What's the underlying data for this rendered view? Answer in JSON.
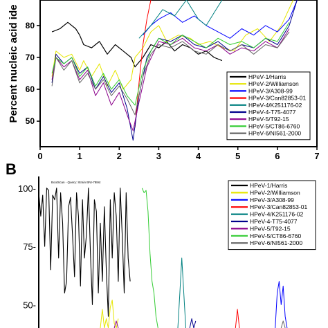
{
  "chart_data": [
    {
      "type": "line",
      "panel_label": "",
      "ylabel": "Percent nucleic acid ide",
      "xlabel": "",
      "xlim": [
        0,
        7
      ],
      "ylim": [
        42,
        88
      ],
      "x_ticks": [
        "0",
        "1",
        "2",
        "3",
        "4",
        "5",
        "6",
        "7"
      ],
      "y_ticks": [
        "50",
        "60",
        "70",
        "80"
      ],
      "legend_position": "bottom-right",
      "series": [
        {
          "name": "HPeV-1/Harris",
          "color": "#000000",
          "width": 1.2,
          "x": [
            0.3,
            0.5,
            0.7,
            0.9,
            1.0,
            1.1,
            1.3,
            1.5,
            1.7,
            1.9,
            2.1,
            2.3,
            2.4,
            2.6,
            2.8,
            3.0,
            3.2,
            3.4,
            3.6,
            3.8,
            4.0,
            4.2,
            4.4,
            4.6
          ],
          "y": [
            78,
            79,
            81,
            79,
            77,
            74,
            73,
            75,
            71,
            74,
            72,
            70,
            67,
            70,
            74,
            73,
            75,
            72,
            74,
            73,
            71,
            72,
            70,
            69
          ]
        },
        {
          "name": "HPeV-2/Williamson",
          "color": "#e6e600",
          "width": 1,
          "x": [
            0.3,
            0.4,
            0.6,
            0.8,
            1.0,
            1.1,
            1.3,
            1.5,
            1.7,
            1.9,
            2.1,
            2.3,
            2.4,
            2.6,
            2.8,
            3.0,
            3.2,
            3.5,
            3.8,
            4.0,
            4.3,
            4.6,
            4.9,
            5.2,
            5.5,
            5.8,
            6.1,
            6.4
          ],
          "y": [
            64,
            72,
            70,
            71,
            66,
            69,
            64,
            68,
            61,
            66,
            60,
            63,
            70,
            73,
            78,
            80,
            75,
            77,
            76,
            74,
            75,
            73,
            72,
            77,
            79,
            75,
            80,
            88
          ]
        },
        {
          "name": "HPeV-3/A308-99",
          "color": "#0000ff",
          "width": 1,
          "x": [
            2.6,
            2.8,
            3.0,
            3.3,
            3.6,
            3.9,
            4.2,
            4.5,
            4.8,
            5.1,
            5.4,
            5.7,
            6.0,
            6.3,
            6.5
          ],
          "y": [
            77,
            80,
            82,
            84,
            81,
            83,
            80,
            78,
            76,
            79,
            77,
            80,
            78,
            82,
            88
          ]
        },
        {
          "name": "HPeV-3/Can82853-01",
          "color": "#ff0000",
          "width": 1,
          "x": [
            2.4,
            2.5,
            2.6,
            2.7,
            2.8
          ],
          "y": [
            48,
            62,
            74,
            82,
            88
          ]
        },
        {
          "name": "HPeV-4/K251176-02",
          "color": "#008080",
          "width": 1,
          "x": [
            2.5,
            2.8,
            3.1,
            3.4,
            3.7,
            4.0,
            4.2,
            4.4,
            4.6
          ],
          "y": [
            76,
            80,
            85,
            83,
            88,
            82,
            80,
            84,
            88
          ]
        },
        {
          "name": "HPeV-4-T75-4077",
          "color": "#00008b",
          "width": 1,
          "x": [
            0.3,
            0.4,
            0.6,
            0.8,
            1.0,
            1.2,
            1.4,
            1.6,
            1.8,
            2.0,
            2.2,
            2.35,
            2.5,
            2.7,
            3.0,
            3.3,
            3.6,
            3.9,
            4.2,
            4.5,
            4.8,
            5.1,
            5.4,
            5.7,
            6.0,
            6.3,
            6.5
          ],
          "y": [
            62,
            71,
            68,
            70,
            65,
            67,
            60,
            64,
            59,
            62,
            54,
            44,
            58,
            70,
            76,
            75,
            77,
            74,
            73,
            75,
            72,
            74,
            73,
            76,
            74,
            80,
            88
          ]
        },
        {
          "name": "HPeV-5/T92-15",
          "color": "#8b008b",
          "width": 1,
          "x": [
            0.3,
            0.4,
            0.6,
            0.8,
            1.0,
            1.2,
            1.4,
            1.6,
            1.8,
            2.0,
            2.2,
            2.35,
            2.5,
            2.7,
            3.0,
            3.3,
            3.6,
            3.9,
            4.2,
            4.5,
            4.8,
            5.1,
            5.4,
            5.7,
            6.0,
            6.3
          ],
          "y": [
            63,
            70,
            67,
            69,
            63,
            66,
            58,
            62,
            55,
            59,
            52,
            47,
            56,
            67,
            75,
            74,
            76,
            73,
            72,
            74,
            71,
            73,
            72,
            75,
            73,
            79
          ]
        },
        {
          "name": "HPeV-5/CT86-6760",
          "color": "#33cc33",
          "width": 1,
          "x": [
            0.3,
            0.4,
            0.6,
            0.8,
            1.0,
            1.2,
            1.4,
            1.6,
            1.8,
            2.0,
            2.2,
            2.4,
            2.6,
            2.8,
            3.0,
            3.3,
            3.6,
            3.9,
            4.2,
            4.5,
            4.8,
            5.1,
            5.4,
            5.7,
            6.0,
            6.3
          ],
          "y": [
            65,
            70,
            68,
            70,
            64,
            67,
            61,
            65,
            60,
            63,
            58,
            55,
            66,
            72,
            76,
            74,
            77,
            75,
            73,
            76,
            74,
            75,
            73,
            76,
            75,
            81
          ]
        },
        {
          "name": "HPeV-6/NI561-2000",
          "color": "#666666",
          "width": 1,
          "x": [
            0.3,
            0.4,
            0.6,
            0.8,
            1.0,
            1.2,
            1.4,
            1.6,
            1.8,
            2.0,
            2.2,
            2.4,
            2.6,
            2.8,
            3.0,
            3.3,
            3.6,
            3.9,
            4.2,
            4.5,
            4.8,
            5.1,
            5.4,
            5.7,
            6.0,
            6.3
          ],
          "y": [
            61,
            70,
            66,
            69,
            62,
            65,
            60,
            63,
            58,
            61,
            57,
            52,
            64,
            71,
            74,
            73,
            75,
            72,
            71,
            74,
            72,
            74,
            71,
            74,
            73,
            78
          ]
        }
      ]
    },
    {
      "type": "line",
      "panel_label": "B",
      "ylabel": "",
      "xlabel": "",
      "ylim": [
        40,
        105
      ],
      "xlim": [
        0,
        7
      ],
      "y_ticks": [
        "100-",
        "75-",
        "50-"
      ],
      "inner_title": "BootScan - Query: Strain BNI-788st",
      "legend_position": "top-right",
      "series": [
        {
          "name": "HPeV-1/Harris",
          "color": "#000000",
          "width": 1.1,
          "x": [
            0.0,
            0.05,
            0.1,
            0.15,
            0.2,
            0.25,
            0.3,
            0.35,
            0.4,
            0.45,
            0.5,
            0.55,
            0.6,
            0.65,
            0.7,
            0.75,
            0.8,
            0.85,
            0.9,
            0.95,
            1.0,
            1.05,
            1.1,
            1.15,
            1.2,
            1.25,
            1.3,
            1.35,
            1.4,
            1.45,
            1.5,
            1.55,
            1.6,
            1.65,
            1.7,
            1.75,
            1.8,
            1.85,
            1.9,
            1.95,
            2.0,
            2.05,
            2.1,
            2.15,
            2.2,
            2.25,
            2.3
          ],
          "y": [
            98,
            88,
            97,
            75,
            100,
            99,
            65,
            97,
            95,
            100,
            70,
            98,
            85,
            55,
            60,
            92,
            96,
            80,
            62,
            98,
            88,
            58,
            95,
            70,
            80,
            100,
            72,
            50,
            95,
            90,
            55,
            85,
            60,
            92,
            65,
            45,
            95,
            70,
            98,
            88,
            60,
            100,
            80,
            55,
            98,
            70,
            60
          ]
        },
        {
          "name": "HPeV-2/Williamson",
          "color": "#e6e600",
          "width": 1,
          "x": [
            1.55,
            1.6,
            1.65,
            1.7,
            1.75,
            1.8,
            1.85,
            1.9,
            1.95,
            2.0
          ],
          "y": [
            40,
            48,
            40,
            44,
            40,
            49,
            52,
            42,
            40,
            44
          ]
        },
        {
          "name": "HPeV-3/A308-99",
          "color": "#0000ff",
          "width": 1,
          "x": [
            5.95,
            6.0,
            6.05,
            6.1,
            6.15,
            6.2,
            6.25
          ],
          "y": [
            40,
            55,
            60,
            50,
            58,
            45,
            40
          ]
        },
        {
          "name": "HPeV-3/Can82853-01",
          "color": "#ff0000",
          "width": 1,
          "x": [
            4.95,
            5.0,
            5.05
          ],
          "y": [
            40,
            48,
            40
          ]
        },
        {
          "name": "HPeV-4/K251176-02",
          "color": "#008080",
          "width": 1,
          "x": [
            3.5,
            3.55,
            3.6,
            3.65,
            3.7
          ],
          "y": [
            40,
            55,
            70,
            55,
            40
          ]
        },
        {
          "name": "HPeV-4-T75-4077",
          "color": "#00008b",
          "width": 1,
          "x": [
            3.8,
            3.85,
            3.9,
            3.95
          ],
          "y": [
            40,
            44,
            40,
            43
          ]
        },
        {
          "name": "HPeV-5/T92-15",
          "color": "#8b008b",
          "width": 1,
          "x": [
            1.9,
            1.95,
            2.0
          ],
          "y": [
            40,
            43,
            40
          ]
        },
        {
          "name": "HPeV-5/CT86-6760",
          "color": "#33cc33",
          "width": 1,
          "x": [
            2.6,
            2.65,
            2.7,
            2.75,
            2.8,
            2.85,
            2.9,
            2.95,
            3.0
          ],
          "y": [
            100,
            98,
            99,
            90,
            72,
            60,
            55,
            45,
            40
          ]
        },
        {
          "name": "HPeV-6/NI561-2000",
          "color": "#666666",
          "width": 1,
          "x": [
            6.1,
            6.15,
            6.2
          ],
          "y": [
            40,
            43,
            40
          ]
        }
      ]
    }
  ]
}
